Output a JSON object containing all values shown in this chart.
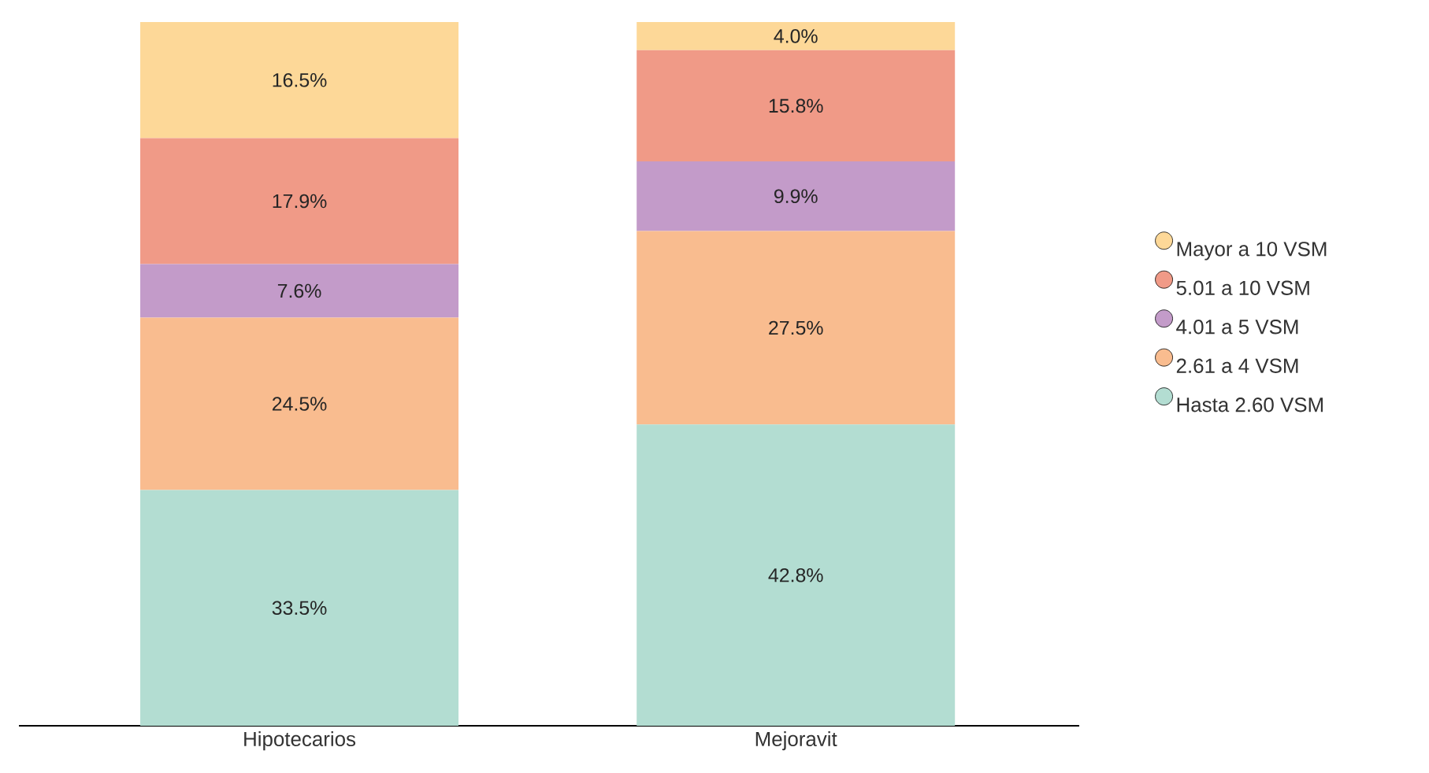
{
  "chart_data": {
    "type": "bar",
    "stacked": true,
    "categories": [
      "Hipotecarios",
      "Mejoravit"
    ],
    "tick_labels": "x",
    "legend": "right",
    "series": [
      {
        "name": "Hasta 2.60 VSM",
        "color": "#b3ddd2",
        "values": [
          33.5,
          42.8
        ],
        "value_labels": [
          "33.5%",
          "42.8%"
        ]
      },
      {
        "name": "2.61 a 4 VSM",
        "color": "#f9bc8f",
        "values": [
          24.5,
          27.5
        ],
        "value_labels": [
          "24.5%",
          "27.5%"
        ]
      },
      {
        "name": "4.01 a 5 VSM",
        "color": "#c39bc9",
        "values": [
          7.6,
          9.9
        ],
        "value_labels": [
          "7.6%",
          "9.9%"
        ]
      },
      {
        "name": "5.01 a 10 VSM",
        "color": "#f09a87",
        "values": [
          17.9,
          15.8
        ],
        "value_labels": [
          "17.9%",
          "15.8%"
        ]
      },
      {
        "name": "Mayor a 10 VSM",
        "color": "#fdd898",
        "values": [
          16.5,
          4.0
        ],
        "value_labels": [
          "16.5%",
          "4.0%"
        ]
      }
    ]
  }
}
